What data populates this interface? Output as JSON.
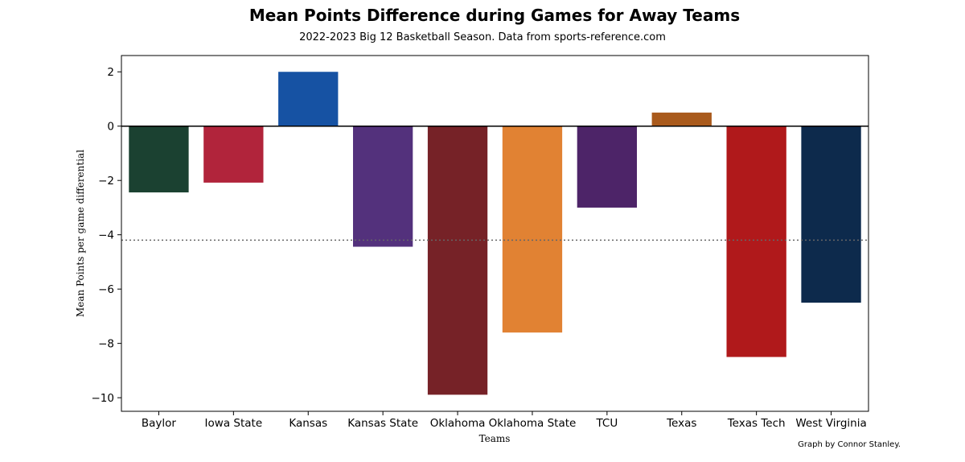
{
  "chart_data": {
    "type": "bar",
    "title": "Mean Points Difference during Games for Away Teams",
    "subtitle": "2022-2023 Big 12 Basketball Season. Data from sports-reference.com",
    "xlabel": "Teams",
    "ylabel": "Mean Points per game differential",
    "credit": "Graph by Connor Stanley.",
    "categories": [
      "Baylor",
      "Iowa State",
      "Kansas",
      "Kansas State",
      "Oklahoma",
      "Oklahoma State",
      "TCU",
      "Texas",
      "Texas Tech",
      "West Virginia"
    ],
    "values": [
      -2.44,
      -2.08,
      2.0,
      -4.44,
      -9.89,
      -7.6,
      -3.0,
      0.5,
      -8.5,
      -6.5
    ],
    "colors": [
      "#1b4131",
      "#b1243b",
      "#1652a3",
      "#53317c",
      "#762227",
      "#e18233",
      "#4d2468",
      "#a95a1c",
      "#b0191b",
      "#0d2a4c"
    ],
    "yticks": [
      2,
      0,
      -2,
      -4,
      -6,
      -8,
      -10
    ],
    "ylim": [
      -10.5,
      2.6
    ],
    "mean_line": -4.2,
    "grid": false,
    "legend": "none"
  }
}
